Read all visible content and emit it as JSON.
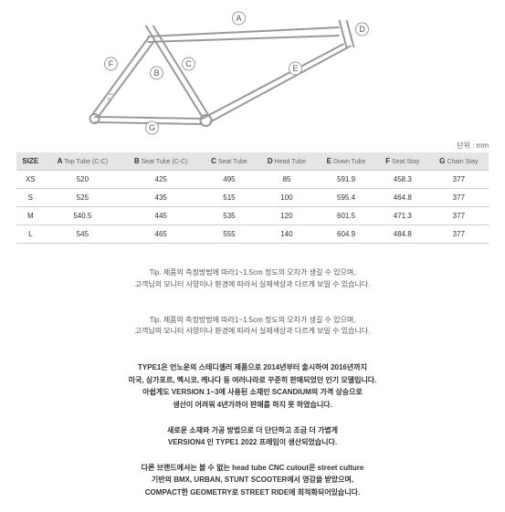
{
  "diagram": {
    "labels": [
      "A",
      "B",
      "C",
      "D",
      "E",
      "F",
      "G"
    ],
    "stroke_color": "#888888",
    "label_font": 9
  },
  "unit_label": "단위 : mm",
  "table": {
    "columns": [
      {
        "main": "SIZE",
        "sub": ""
      },
      {
        "main": "A",
        "sub": " Top Tube (C-C)"
      },
      {
        "main": "B",
        "sub": " Seat Tube (C-C)"
      },
      {
        "main": "C",
        "sub": " Seat Tube"
      },
      {
        "main": "D",
        "sub": " Head Tube"
      },
      {
        "main": "E",
        "sub": " Down Tube"
      },
      {
        "main": "F",
        "sub": " Seat Stay"
      },
      {
        "main": "G",
        "sub": " Chain Stay"
      }
    ],
    "rows": [
      [
        "XS",
        "520",
        "425",
        "495",
        "85",
        "591.9",
        "458.3",
        "377"
      ],
      [
        "S",
        "525",
        "435",
        "515",
        "100",
        "595.4",
        "464.8",
        "377"
      ],
      [
        "M",
        "540.5",
        "445",
        "535",
        "120",
        "601.5",
        "471.3",
        "377"
      ],
      [
        "L",
        "545",
        "465",
        "555",
        "140",
        "604.9",
        "484.8",
        "377"
      ]
    ]
  },
  "tip1_line1": "Tip. 제품의 측정방법에 따라1~1.5cm 정도의 오차가 생길 수 있으며,",
  "tip1_line2": "고객님의 모니터 사양이나 환경에 따라서 실제색상과 다르게 보일 수 있습니다.",
  "tip2_line1": "Tip. 제품의 측정방법에 따라1~1.5cm 정도의 오차가 생길 수 있으며,",
  "tip2_line2": "고객님의 모니터 사양이나 환경에 따라서 실제색상과 다르게 보일 수 있습니다.",
  "desc": {
    "p1l1": "TYPE1은 언노운의 스테디셀러 제품으로 2014년부터 출시하여 2016년까지",
    "p1l2": "미국, 싱가포르, 멕시코, 캐나다 등 여러나라로 꾸준히 판매되었던 인기 모델입니다.",
    "p1l3": "아쉽게도 VERSION 1~3에 사용된 소재인 SCANDIUM의 가격 상승으로",
    "p1l4": "생산이 어려워 4년가까이 판매를 하지 못 하였습니다.",
    "p2l1": "새로운 소재와 가공 방법으로 더 단단하고 조금 더 가볍게",
    "p2l2": "VERSION4 인 TYPE1 2022 프레임이 생산되었습니다.",
    "p3l1": "다른 브랜드에서는 볼 수 없는 head tube CNC cutout은 street culture",
    "p3l2": "기반의 BMX, URBAN, STUNT SCOOTER에서 영감을 받았으며,",
    "p3l3": "COMPACT한 GEOMETRY로 STREET RIDE에 최적화되어있습니다."
  }
}
